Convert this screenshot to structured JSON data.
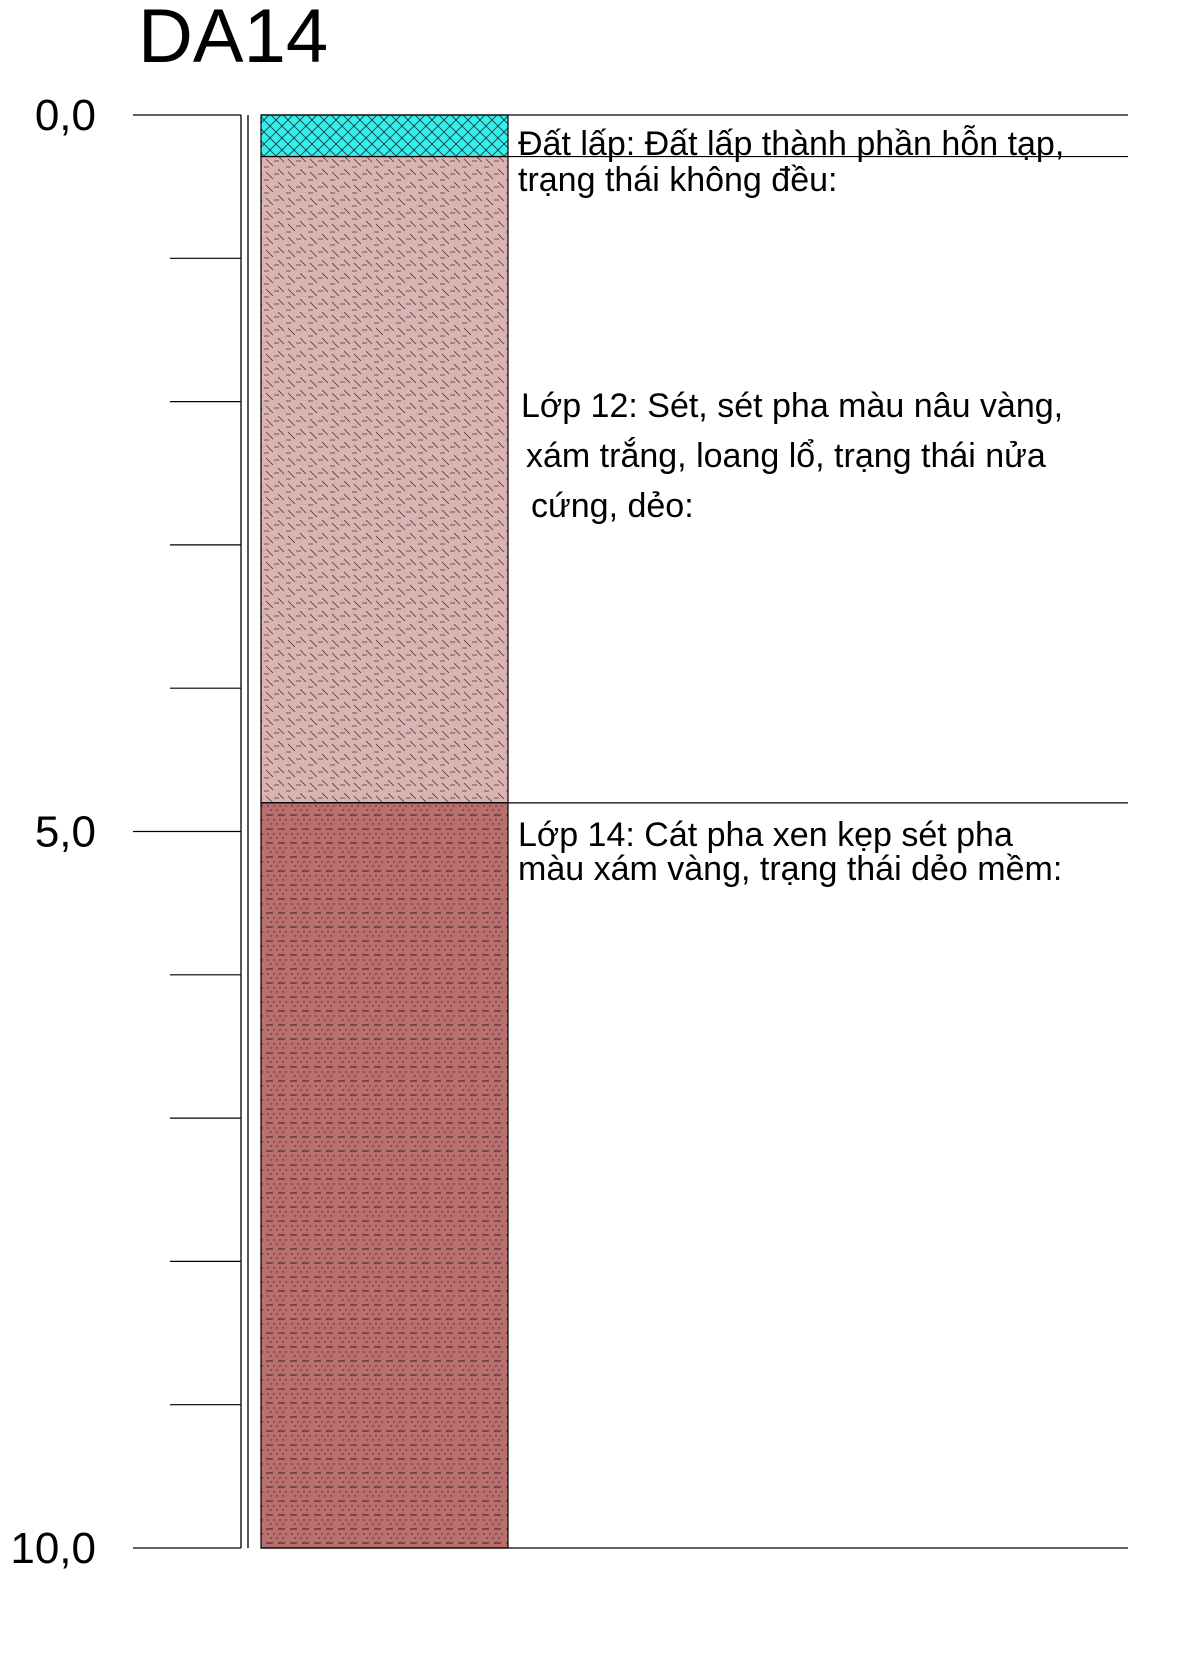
{
  "borehole": {
    "title": "DA14"
  },
  "depth_axis": {
    "unit_decimal_separator": ",",
    "start": 0,
    "end": 10,
    "minor_interval": 1,
    "labels": [
      {
        "depth": 0,
        "text": "0,0"
      },
      {
        "depth": 5,
        "text": "5,0"
      },
      {
        "depth": 10,
        "text": "10,0"
      }
    ]
  },
  "layers": [
    {
      "id": "fill",
      "top": 0,
      "bottom": 0.29,
      "pattern": "cross-hatch",
      "color": "#33f0ee",
      "description": [
        "Đất lấp: Đất lấp thành phần hỗn tạp,",
        "trạng thái không đều:"
      ]
    },
    {
      "id": "layer-12",
      "top": 0.29,
      "bottom": 4.8,
      "pattern": "clay-dash-diagonal",
      "color": "#dcb3b3",
      "description": [
        "Lớp 12: Sét, sét pha màu nâu vàng,",
        "xám trắng, loang lổ, trạng thái nửa",
        "cứng, dẻo:"
      ]
    },
    {
      "id": "layer-14",
      "top": 4.8,
      "bottom": 10,
      "pattern": "sandy-clay-dash-dot",
      "color": "#bb6e6e",
      "description": [
        "Lớp 14: Cát pha xen kẹp sét pha",
        "màu xám vàng, trạng thái dẻo mềm:"
      ]
    }
  ]
}
